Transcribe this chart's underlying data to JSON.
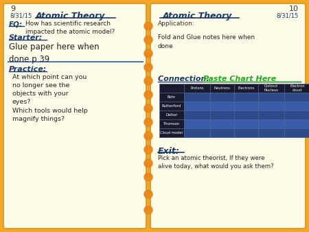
{
  "bg_color": "#F5A623",
  "left_panel_bg": "#FEFCE8",
  "right_panel_bg": "#FEFCE8",
  "page_num_left": "9",
  "page_num_right": "10",
  "date": "8/31/15",
  "title_left": "Atomic Theory",
  "title_right": "Atomic Theory",
  "eq_label": "EQ:",
  "eq_text": "How has scientific research\nimpacted the atomic model?",
  "starter_label": "Starter:",
  "starter_text": "Glue paper here when\ndone p 39",
  "practice_label": "Practice:",
  "practice_text": "At which point can you\nno longer see the\nobjects with your\neyes?\nWhich tools would help\nmagnify things?",
  "application_label": "Application:",
  "fold_text": "Fold and Glue notes here when\ndone",
  "connection_label": "Connection: ",
  "connection_highlight": "Paste Chart Here",
  "exit_label": "Exit:",
  "exit_text": "Pick an atomic theorist, If they were\nalive today, what would you ask them?",
  "table_headers": [
    "Protons",
    "Neutrons",
    "Electrons",
    "Distinct\nNucleus",
    "Electron\ncloud"
  ],
  "table_rows": [
    "Bohr",
    "Rutherford",
    "Dalton",
    "Thomson",
    "Cloud model"
  ],
  "header_bg": "#1a1a2e",
  "row_bg1": "#2e4a8a",
  "row_bg2": "#3a5aaa",
  "label_color": "#1a3a6a",
  "title_color": "#1a3a6a",
  "green_color": "#22aa22",
  "divider_color": "#4a7ab5",
  "dot_color": "#e8891a"
}
